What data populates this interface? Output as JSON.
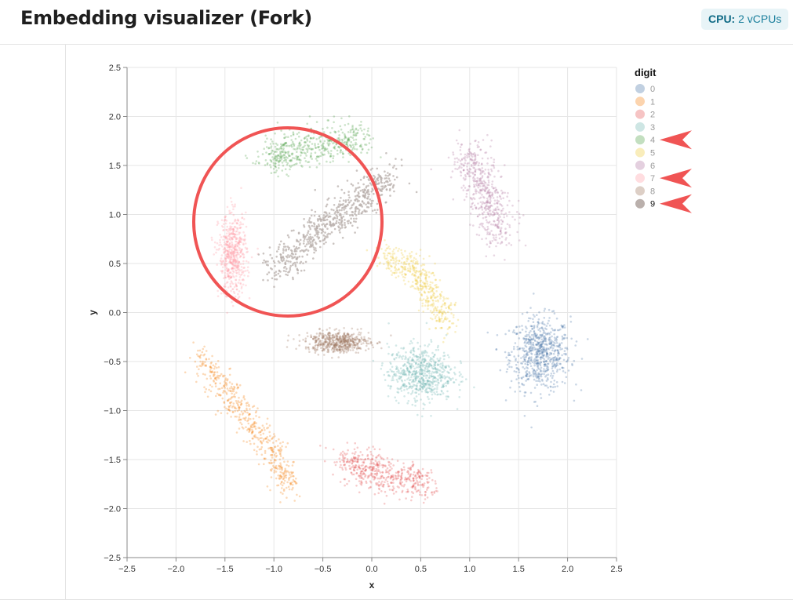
{
  "header": {
    "title": "Embedding visualizer (Fork)",
    "cpu_label": "CPU:",
    "cpu_value": "2 vCPUs"
  },
  "colors": {
    "annotation": "#f05454",
    "grid": "#e6e6e6",
    "axis": "#888888"
  },
  "chart_data": {
    "type": "scatter",
    "xlabel": "x",
    "ylabel": "y",
    "xlim": [
      -2.5,
      2.5
    ],
    "ylim": [
      -2.5,
      2.5
    ],
    "x_ticks": [
      "−2.5",
      "−2.0",
      "−1.5",
      "−1.0",
      "−0.5",
      "0.0",
      "0.5",
      "1.0",
      "1.5",
      "2.0",
      "2.5"
    ],
    "y_ticks": [
      "2.5",
      "2.0",
      "1.5",
      "1.0",
      "0.5",
      "0.0",
      "−0.5",
      "−1.0",
      "−1.5",
      "−2.0",
      "−2.5"
    ],
    "grid": true,
    "legend": {
      "title": "digit",
      "placement": "right",
      "selected": "9",
      "entries": [
        {
          "label": "0",
          "color": "#4c78a8"
        },
        {
          "label": "1",
          "color": "#f58518"
        },
        {
          "label": "2",
          "color": "#e45756"
        },
        {
          "label": "3",
          "color": "#72b7b2"
        },
        {
          "label": "4",
          "color": "#54a24b"
        },
        {
          "label": "5",
          "color": "#eeca3b"
        },
        {
          "label": "6",
          "color": "#b279a2"
        },
        {
          "label": "7",
          "color": "#ff9da6"
        },
        {
          "label": "8",
          "color": "#9d755d"
        },
        {
          "label": "9",
          "color": "#bab0ac"
        }
      ]
    },
    "clusters": [
      {
        "digit": "0",
        "shape": "blob",
        "center": [
          1.72,
          -0.42
        ],
        "spread": [
          0.28,
          0.34
        ],
        "angle": 0,
        "n": 700
      },
      {
        "digit": "1",
        "shape": "path",
        "path": [
          [
            -1.75,
            -0.42
          ],
          [
            -1.5,
            -0.82
          ],
          [
            -1.25,
            -1.12
          ],
          [
            -1.0,
            -1.42
          ],
          [
            -0.85,
            -1.8
          ]
        ],
        "width": 0.07,
        "n": 520
      },
      {
        "digit": "2",
        "shape": "path",
        "path": [
          [
            -0.3,
            -1.5
          ],
          [
            0.0,
            -1.62
          ],
          [
            0.3,
            -1.7
          ],
          [
            0.55,
            -1.72
          ]
        ],
        "width": 0.09,
        "n": 520
      },
      {
        "digit": "3",
        "shape": "blob",
        "center": [
          0.5,
          -0.62
        ],
        "spread": [
          0.3,
          0.26
        ],
        "angle": 0,
        "n": 650
      },
      {
        "digit": "4",
        "shape": "path",
        "path": [
          [
            -1.05,
            1.55
          ],
          [
            -0.8,
            1.68
          ],
          [
            -0.45,
            1.72
          ],
          [
            -0.1,
            1.78
          ]
        ],
        "width": 0.09,
        "n": 520
      },
      {
        "digit": "5",
        "shape": "path",
        "path": [
          [
            0.1,
            0.58
          ],
          [
            0.42,
            0.45
          ],
          [
            0.62,
            0.18
          ],
          [
            0.78,
            -0.12
          ]
        ],
        "width": 0.07,
        "n": 440
      },
      {
        "digit": "6",
        "shape": "path",
        "path": [
          [
            0.98,
            1.65
          ],
          [
            1.1,
            1.35
          ],
          [
            1.22,
            1.05
          ],
          [
            1.32,
            0.72
          ]
        ],
        "width": 0.1,
        "n": 520
      },
      {
        "digit": "7",
        "shape": "blob",
        "center": [
          -1.42,
          0.58
        ],
        "spread": [
          0.13,
          0.38
        ],
        "angle": 0,
        "n": 560
      },
      {
        "digit": "8",
        "shape": "blob",
        "center": [
          -0.35,
          -0.3
        ],
        "spread": [
          0.3,
          0.1
        ],
        "angle": 8,
        "n": 520
      },
      {
        "digit": "9",
        "shape": "path",
        "path": [
          [
            -0.98,
            0.42
          ],
          [
            -0.6,
            0.8
          ],
          [
            -0.2,
            1.08
          ],
          [
            0.2,
            1.42
          ]
        ],
        "width": 0.09,
        "n": 640
      }
    ]
  }
}
